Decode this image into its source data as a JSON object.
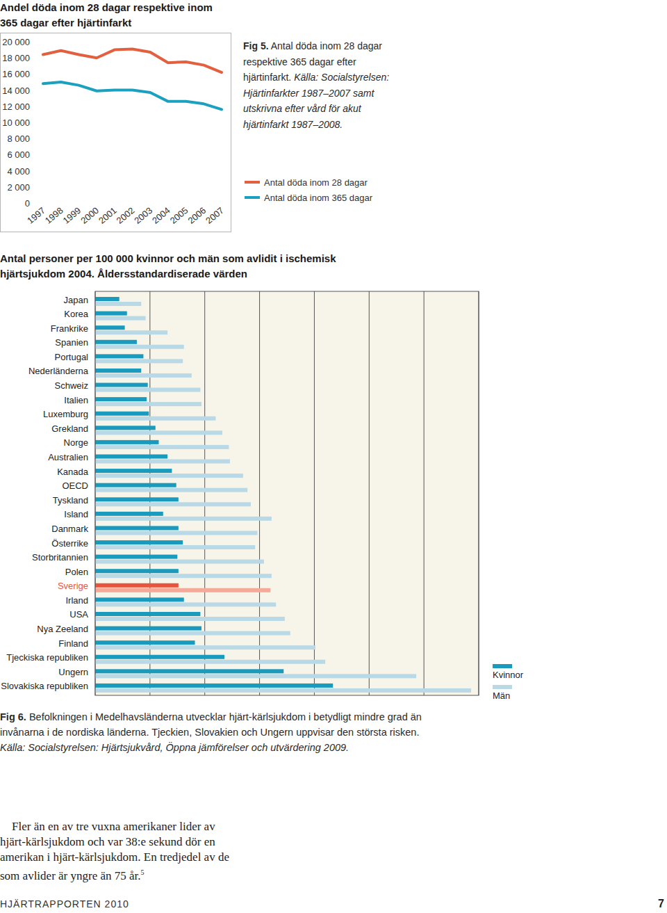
{
  "chart_data": [
    {
      "type": "line",
      "title": "Andel döda inom 28 dagar respektive inom 365 dagar efter hjärtinfarkt",
      "caption": {
        "label": "Fig 5.",
        "text": "Antal döda inom 28 dagar respektive 365 dagar efter hjärtinfarkt.",
        "source": "Källa: Socialstyrelsen: Hjärtinfarkter 1987–2007 samt utskrivna efter vård för akut hjärtinfarkt 1987–2008."
      },
      "categories": [
        "1997",
        "1998",
        "1999",
        "2000",
        "2001",
        "2002",
        "2003",
        "2004",
        "2005",
        "2006",
        "2007"
      ],
      "series": [
        {
          "name": "Antal döda inom 28 dagar",
          "color": "#e2603f",
          "values": [
            18400,
            18900,
            18400,
            18000,
            19000,
            19100,
            18700,
            17400,
            17500,
            17100,
            16200
          ]
        },
        {
          "name": "Antal döda inom 365 dagar",
          "color": "#1ba0bf",
          "values": [
            14800,
            15000,
            14600,
            13900,
            14000,
            14000,
            13700,
            12600,
            12600,
            12300,
            11600
          ]
        }
      ],
      "ylim": [
        0,
        20000
      ],
      "yticks": [
        0,
        {
          "value": 2000,
          "label": "2 000"
        },
        {
          "value": 4000,
          "label": "4 000"
        },
        {
          "value": 6000,
          "label": "6 000"
        },
        {
          "value": 8000,
          "label": "8 000"
        },
        {
          "value": 10000,
          "label": "10 000"
        },
        {
          "value": 12000,
          "label": "12 000"
        },
        {
          "value": 14000,
          "label": "14 000"
        },
        {
          "value": 16000,
          "label": "16 000"
        },
        {
          "value": 18000,
          "label": "18 000"
        },
        {
          "value": 20000,
          "label": "20 000"
        }
      ],
      "grid": false,
      "legend": "right"
    },
    {
      "type": "bar",
      "orientation": "horizontal",
      "title": "Antal personer per 100 000 kvinnor och män som avlidit i ischemisk hjärtsjukdom 2004. Åldersstandardiserade värden",
      "caption": {
        "label": "Fig 6.",
        "text": "Befolkningen i Medelhavsländerna utvecklar hjärt-kärlsjukdom i betydligt mindre grad än invånarna i de nordiska länderna. Tjeckien, Slovakien och Ungern uppvisar den största risken.",
        "source": "Källa: Socialstyrelsen: Hjärtsjukvård, Öppna jämförelser och utvärdering 2009."
      },
      "categories": [
        "Japan",
        "Korea",
        "Frankrike",
        "Spanien",
        "Portugal",
        "Nederländerna",
        "Schweiz",
        "Italien",
        "Luxemburg",
        "Grekland",
        "Norge",
        "Australien",
        "Kanada",
        "OECD",
        "Tyskland",
        "Island",
        "Danmark",
        "Österrike",
        "Storbritannien",
        "Polen",
        "Sverige",
        "Irland",
        "USA",
        "Nya Zeeland",
        "Finland",
        "Tjeckiska republiken",
        "Ungern",
        "Slovakiska republiken"
      ],
      "series": [
        {
          "name": "Kvinnor",
          "color": "#1a9bbd",
          "colors": [
            "#1a9bbd",
            "#1a9bbd",
            "#1a9bbd",
            "#1a9bbd",
            "#1a9bbd",
            "#1a9bbd",
            "#1a9bbd",
            "#1a9bbd",
            "#1a9bbd",
            "#1a9bbd",
            "#1a9bbd",
            "#1a9bbd",
            "#1a9bbd",
            "#1a9bbd",
            "#1a9bbd",
            "#1a9bbd",
            "#1a9bbd",
            "#1a9bbd",
            "#1a9bbd",
            "#1a9bbd",
            "#e8553e",
            "#1a9bbd",
            "#1a9bbd",
            "#1a9bbd",
            "#1a9bbd",
            "#1a9bbd",
            "#1a9bbd",
            "#1a9bbd"
          ],
          "values": [
            22,
            29,
            27,
            38,
            44,
            42,
            48,
            47,
            49,
            55,
            58,
            66,
            70,
            74,
            76,
            62,
            76,
            80,
            75,
            76,
            76,
            81,
            96,
            97,
            91,
            118,
            172,
            217
          ]
        },
        {
          "name": "Män",
          "color": "#b9d9e6",
          "colors": [
            "#b9d9e6",
            "#b9d9e6",
            "#b9d9e6",
            "#b9d9e6",
            "#b9d9e6",
            "#b9d9e6",
            "#b9d9e6",
            "#b9d9e6",
            "#b9d9e6",
            "#b9d9e6",
            "#b9d9e6",
            "#b9d9e6",
            "#b9d9e6",
            "#b9d9e6",
            "#b9d9e6",
            "#b9d9e6",
            "#b9d9e6",
            "#b9d9e6",
            "#b9d9e6",
            "#b9d9e6",
            "#f4a999",
            "#b9d9e6",
            "#b9d9e6",
            "#b9d9e6",
            "#b9d9e6",
            "#b9d9e6",
            "#b9d9e6",
            "#b9d9e6"
          ],
          "values": [
            42,
            46,
            66,
            81,
            80,
            88,
            96,
            97,
            110,
            116,
            122,
            123,
            135,
            139,
            142,
            161,
            148,
            146,
            154,
            161,
            160,
            165,
            173,
            178,
            201,
            210,
            293,
            343
          ]
        }
      ],
      "xlim": [
        0,
        350
      ],
      "xticks": [
        0,
        50,
        100,
        150,
        200,
        250,
        300,
        350
      ],
      "tick_labels": false,
      "grid": true,
      "legend": "lower right"
    }
  ],
  "quote": {
    "lines": [
      "Fler än en av tre vuxna amerikaner lider av",
      "hjärt-kärlsjukdom och var 38:e sekund dör en",
      "amerikan i hjärt-kärlsjukdom. En tredjedel av de",
      "som avlider är yngre än 75 år."
    ],
    "note_ref": "5"
  },
  "footer": {
    "publication": "HJÄRTRAPPORTEN 2010",
    "page": 7
  }
}
